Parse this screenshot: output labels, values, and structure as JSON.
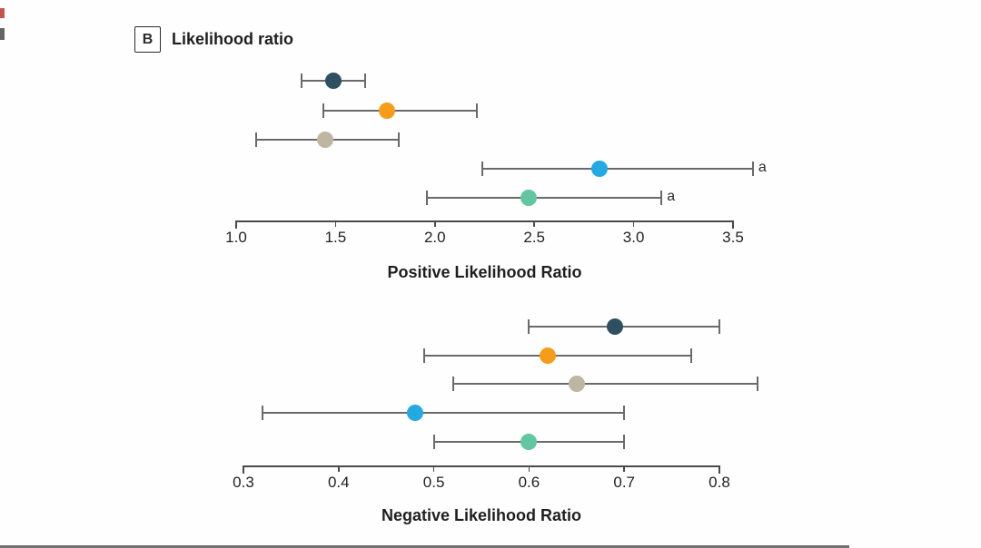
{
  "panel": {
    "letter": "B",
    "title": "Likelihood ratio"
  },
  "footnote_marker": "a",
  "colors": {
    "navy": "#2F5061",
    "orange": "#F59C1D",
    "tan": "#BFB6A2",
    "blue": "#24A9E1",
    "green": "#63C6A3",
    "error_bar": "#6A6A6A",
    "axis": "#4A4A4A",
    "text": "#212121"
  },
  "chart_data": [
    {
      "type": "scatter",
      "variant": "forest-dot-with-ci",
      "title": "Positive Likelihood Ratio",
      "xlabel": "Positive Likelihood Ratio",
      "xlim": [
        1.0,
        3.5
      ],
      "tick_labels": [
        "1.0",
        "1.5",
        "2.0",
        "2.5",
        "3.0",
        "3.5"
      ],
      "grid": false,
      "legend": "none",
      "series": [
        {
          "name": "dark-navy",
          "color_key": "navy",
          "value": 1.49,
          "ci": [
            1.33,
            1.65
          ],
          "note": ""
        },
        {
          "name": "orange",
          "color_key": "orange",
          "value": 1.76,
          "ci": [
            1.44,
            2.21
          ],
          "note": ""
        },
        {
          "name": "tan",
          "color_key": "tan",
          "value": 1.45,
          "ci": [
            1.1,
            1.82
          ],
          "note": ""
        },
        {
          "name": "light-blue",
          "color_key": "blue",
          "value": 2.83,
          "ci": [
            2.24,
            3.6
          ],
          "note": "a"
        },
        {
          "name": "teal-green",
          "color_key": "green",
          "value": 2.47,
          "ci": [
            1.96,
            3.14
          ],
          "note": "a"
        }
      ]
    },
    {
      "type": "scatter",
      "variant": "forest-dot-with-ci",
      "title": "Negative Likelihood Ratio",
      "xlabel": "Negative Likelihood Ratio",
      "xlim": [
        0.3,
        0.8
      ],
      "tick_labels": [
        "0.3",
        "0.4",
        "0.5",
        "0.6",
        "0.7",
        "0.8"
      ],
      "grid": false,
      "legend": "none",
      "series": [
        {
          "name": "dark-navy",
          "color_key": "navy",
          "value": 0.69,
          "ci": [
            0.6,
            0.8
          ],
          "note": ""
        },
        {
          "name": "orange",
          "color_key": "orange",
          "value": 0.62,
          "ci": [
            0.49,
            0.77
          ],
          "note": ""
        },
        {
          "name": "tan",
          "color_key": "tan",
          "value": 0.65,
          "ci": [
            0.52,
            0.84
          ],
          "note": ""
        },
        {
          "name": "light-blue",
          "color_key": "blue",
          "value": 0.48,
          "ci": [
            0.32,
            0.7
          ],
          "note": ""
        },
        {
          "name": "teal-green",
          "color_key": "green",
          "value": 0.6,
          "ci": [
            0.5,
            0.7
          ],
          "note": ""
        }
      ]
    }
  ]
}
